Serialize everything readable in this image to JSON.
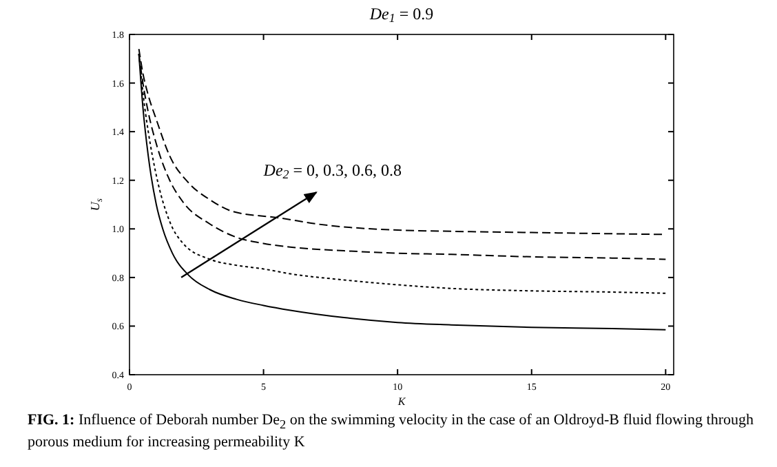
{
  "chart_data": {
    "type": "line",
    "title": "De$_{1}$ = 0.9",
    "xlabel": "K",
    "ylabel": "U$_{s}$",
    "xlim": [
      0,
      20.3
    ],
    "ylim": [
      0.4,
      1.8
    ],
    "xticks": [
      0,
      5,
      10,
      15,
      20
    ],
    "yticks": [
      0.4,
      0.6,
      0.8,
      {
        "value": 1,
        "label": "1.0"
      },
      1.2,
      1.4,
      1.6,
      1.8
    ],
    "grid": false,
    "series": [
      {
        "color": "#000000",
        "line_style": "solid",
        "x": [
          0.35,
          0.5,
          0.7,
          1,
          1.24,
          1.6,
          2.2,
          3,
          4,
          5,
          6,
          8,
          10,
          12,
          15,
          18,
          20
        ],
        "values": [
          1.72,
          1.5,
          1.3,
          1.1,
          1.0,
          0.9,
          0.81,
          0.75,
          0.71,
          0.685,
          0.665,
          0.635,
          0.615,
          0.605,
          0.595,
          0.59,
          0.585
        ]
      },
      {
        "color": "#000000",
        "line_style": "dotted",
        "x": [
          0.35,
          0.5,
          0.7,
          1,
          1.5,
          2,
          3,
          4,
          5,
          6,
          8,
          10,
          12,
          15,
          18,
          20
        ],
        "values": [
          1.72,
          1.56,
          1.4,
          1.22,
          1.03,
          0.94,
          0.875,
          0.85,
          0.835,
          0.815,
          0.79,
          0.77,
          0.755,
          0.745,
          0.74,
          0.735
        ]
      },
      {
        "color": "#000000",
        "line_style": "dashed",
        "x": [
          0.35,
          0.5,
          0.7,
          1,
          1.5,
          2,
          3,
          4,
          5,
          6,
          8,
          10,
          12,
          15,
          18,
          20
        ],
        "values": [
          1.72,
          1.6,
          1.48,
          1.35,
          1.2,
          1.11,
          1.02,
          0.965,
          0.94,
          0.925,
          0.91,
          0.9,
          0.895,
          0.885,
          0.88,
          0.875
        ]
      },
      {
        "color": "#000000",
        "line_style": "dashed",
        "x": [
          0.35,
          0.5,
          0.7,
          1,
          1.5,
          2.2,
          3,
          3.9,
          5.6,
          7,
          10,
          12,
          15,
          18,
          20
        ],
        "values": [
          1.74,
          1.64,
          1.55,
          1.45,
          1.3,
          1.19,
          1.12,
          1.07,
          1.045,
          1.02,
          0.995,
          0.99,
          0.985,
          0.98,
          0.977
        ]
      }
    ],
    "annotations": [
      "De$_{2}$ = 0, 0.3, 0.6, 0.8",
      "FIG. 1: Influence of Deborah number De$_{2}$ on the swimming velocity in the case of an Oldroyd-B fluid flowing through porous medium for increasing permeability K"
    ]
  }
}
